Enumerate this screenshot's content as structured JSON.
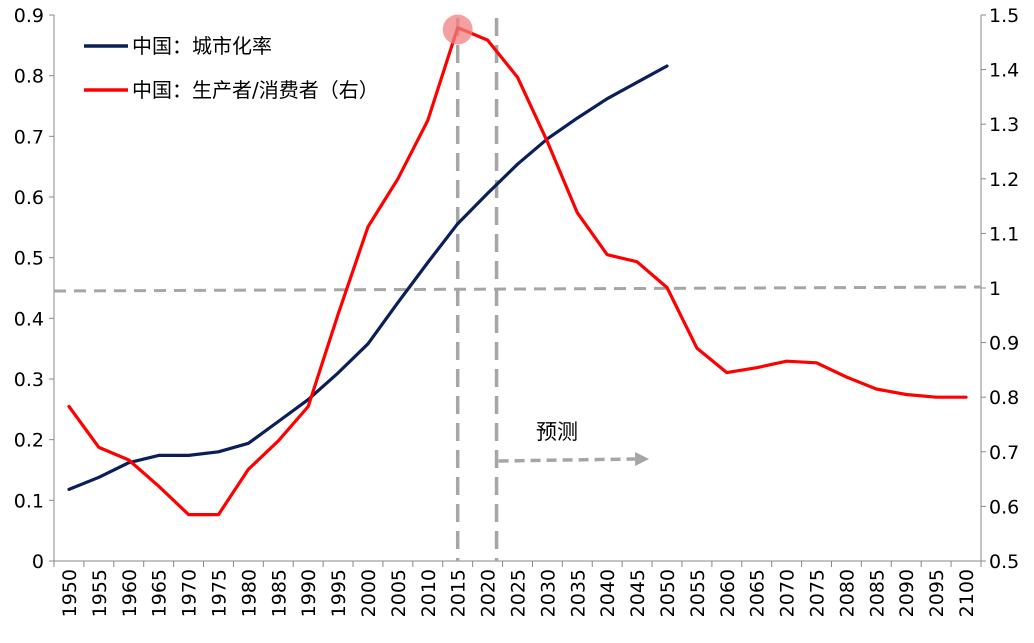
{
  "chart_data": {
    "type": "line",
    "title": "",
    "xlabel": "",
    "ylabel": "",
    "x": [
      1950,
      1955,
      1960,
      1965,
      1970,
      1975,
      1980,
      1985,
      1990,
      1995,
      2000,
      2005,
      2010,
      2015,
      2020,
      2025,
      2030,
      2035,
      2040,
      2045,
      2050,
      2055,
      2060,
      2065,
      2070,
      2075,
      2080,
      2085,
      2090,
      2095,
      2100
    ],
    "xlim": [
      1947.5,
      2102.5
    ],
    "y_left": {
      "range": [
        0,
        0.9
      ],
      "ticks": [
        "0",
        "0.1",
        "0.2",
        "0.3",
        "0.4",
        "0.5",
        "0.6",
        "0.7",
        "0.8",
        "0.9"
      ]
    },
    "y_right": {
      "range": [
        0.5,
        1.5
      ],
      "ticks": [
        "0.5",
        "0.6",
        "0.7",
        "0.8",
        "0.9",
        "1",
        "1.1",
        "1.2",
        "1.3",
        "1.4",
        "1.5"
      ]
    },
    "series": [
      {
        "name": "中国：城市化率",
        "axis": "left",
        "color": "#0a1e5a",
        "values": [
          0.118,
          0.138,
          0.162,
          0.174,
          0.174,
          0.18,
          0.194,
          0.23,
          0.266,
          0.31,
          0.358,
          0.426,
          0.492,
          0.556,
          0.606,
          0.654,
          0.696,
          0.73,
          0.762,
          0.789,
          0.816,
          null,
          null,
          null,
          null,
          null,
          null,
          null,
          null,
          null,
          null
        ]
      },
      {
        "name": "中国：生产者/消费者（右）",
        "axis": "right",
        "color": "#ff0000",
        "values": [
          0.783,
          0.708,
          0.685,
          0.637,
          0.585,
          0.585,
          0.668,
          0.72,
          0.783,
          0.952,
          1.112,
          1.2,
          1.307,
          1.477,
          1.454,
          1.386,
          1.268,
          1.138,
          1.061,
          1.048,
          1.001,
          0.89,
          0.845,
          0.854,
          0.866,
          0.863,
          0.837,
          0.815,
          0.805,
          0.8,
          0.8
        ]
      }
    ],
    "reference_lines": [
      {
        "orientation": "horizontal",
        "axis": "right",
        "value": 1.0,
        "style": "dashed",
        "color": "#a6a6a6"
      },
      {
        "orientation": "vertical",
        "x": 2015,
        "style": "dashed",
        "color": "#a6a6a6"
      },
      {
        "orientation": "vertical",
        "x": 2021.5,
        "style": "dashed",
        "color": "#a6a6a6"
      }
    ],
    "highlight": {
      "x": 2015,
      "series": "中国：生产者/消费者（右）",
      "color": "#f08080"
    },
    "annotation": {
      "text": "预测",
      "arrow_from": 2021.5,
      "arrow_to": 2047,
      "arrow_y_right": 0.685
    },
    "legend": {
      "position": "top-left"
    },
    "grid": false
  }
}
